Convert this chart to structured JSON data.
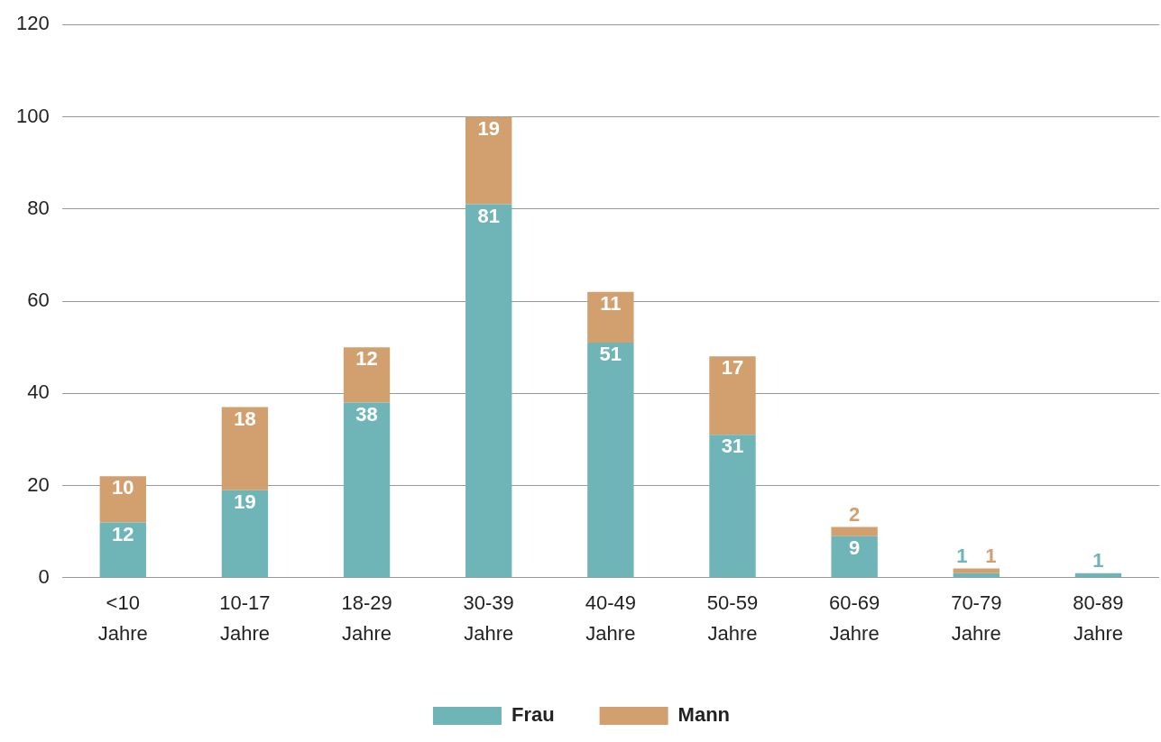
{
  "chart_data": {
    "type": "bar",
    "stacked": true,
    "categories": [
      "<10 Jahre",
      "10-17 Jahre",
      "18-29 Jahre",
      "30-39 Jahre",
      "40-49 Jahre",
      "50-59 Jahre",
      "60-69 Jahre",
      "70-79 Jahre",
      "80-89 Jahre"
    ],
    "series": [
      {
        "name": "Frau",
        "color": "#6fb5b8",
        "values": [
          12,
          19,
          38,
          81,
          51,
          31,
          9,
          1,
          1
        ]
      },
      {
        "name": "Mann",
        "color": "#d29f6e",
        "values": [
          10,
          18,
          12,
          19,
          11,
          17,
          2,
          1,
          null
        ]
      }
    ],
    "ylim": [
      0,
      120
    ],
    "yticks": [
      0,
      20,
      40,
      60,
      80,
      100,
      120
    ],
    "grid": "y",
    "legend": "bottom",
    "data_labels": true
  }
}
